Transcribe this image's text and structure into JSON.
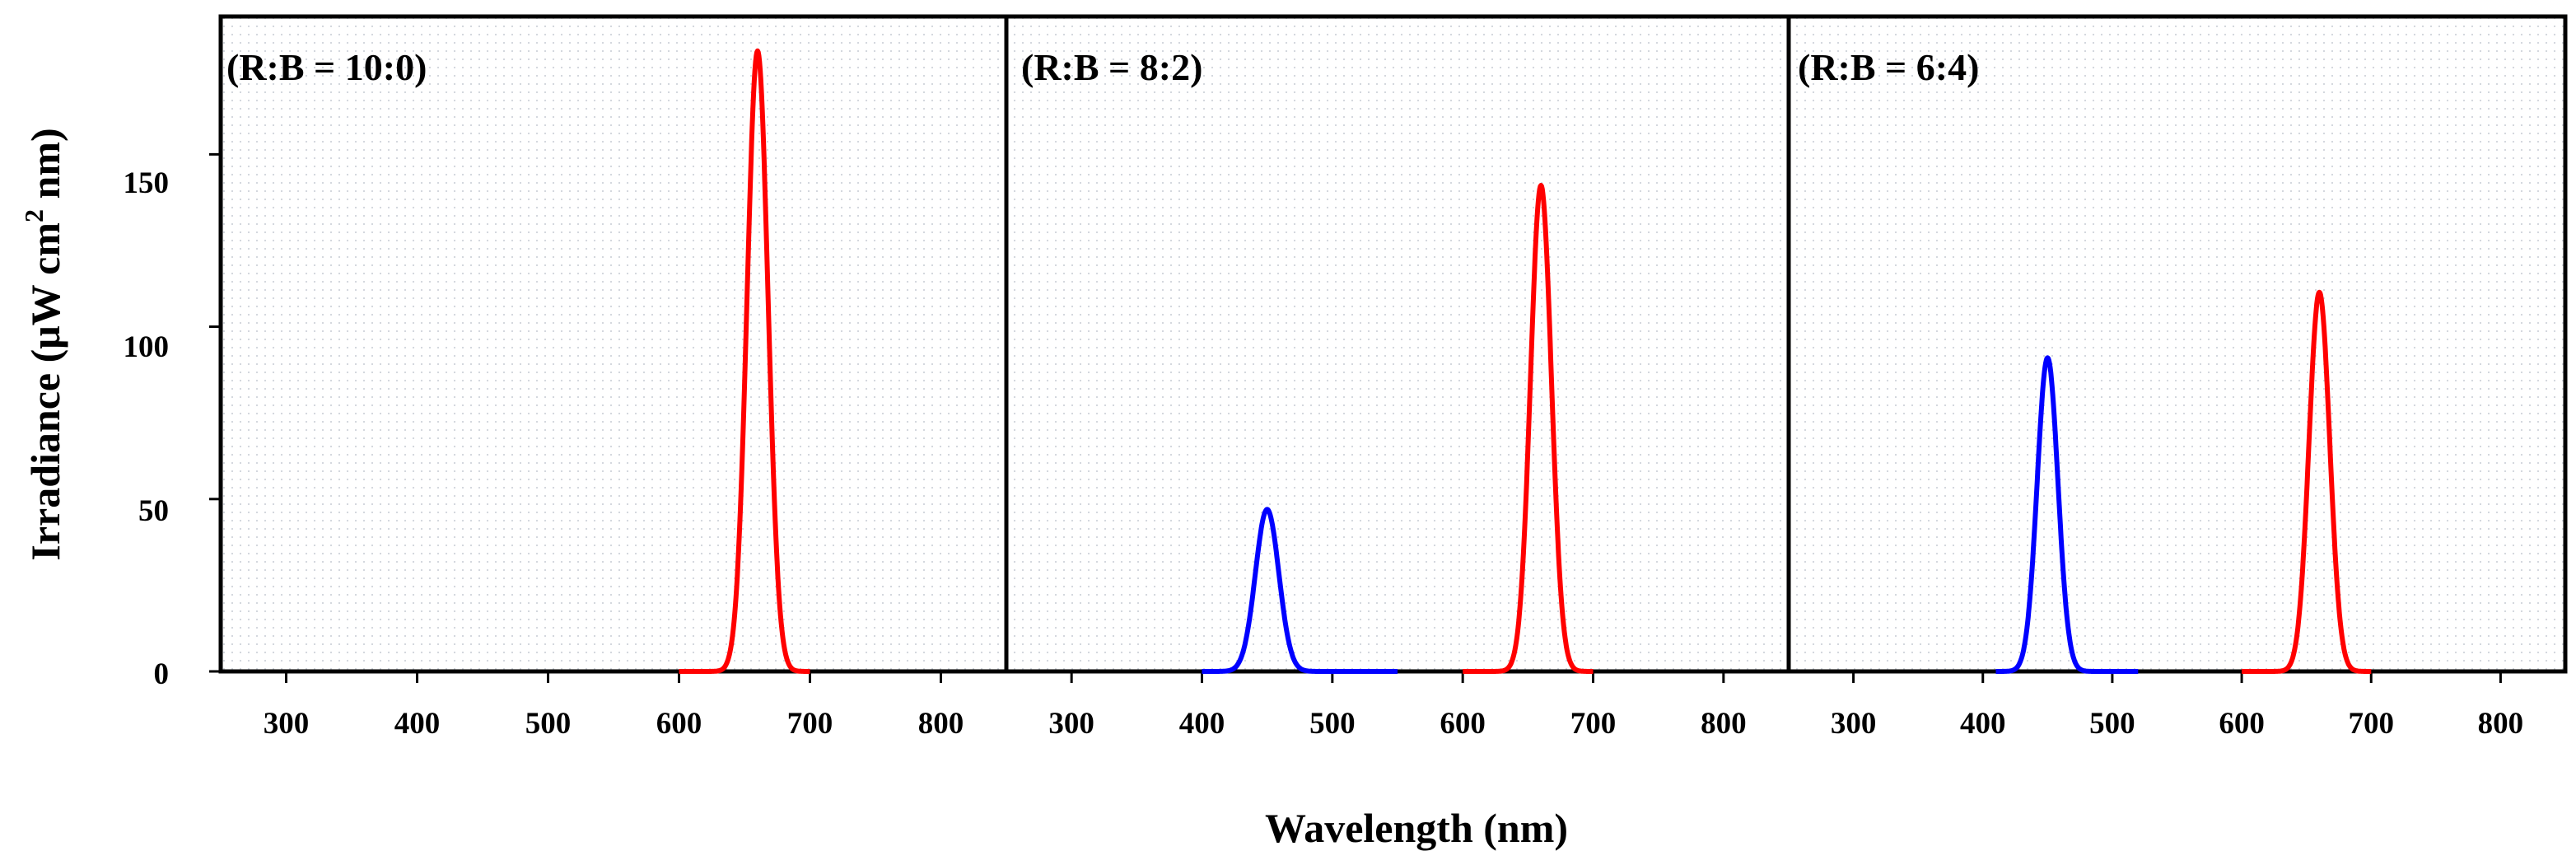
{
  "chart_data": {
    "type": "line",
    "ylabel": "Irradiance (μW cm",
    "ylabel_sup": "2",
    "ylabel_tail": " nm)",
    "xlabel": "Wavelength (nm)",
    "ylim": [
      0,
      190
    ],
    "yticks": [
      0,
      50,
      100,
      150
    ],
    "xlim": [
      250,
      850
    ],
    "xticks": [
      300,
      400,
      500,
      600,
      700,
      800
    ],
    "panels": [
      {
        "title": "(R:B = 10:0)",
        "series": [
          {
            "name": "red",
            "color": "#ff0000",
            "start": 600,
            "end": 700,
            "peak_x": 660,
            "peak_y": 180,
            "width": 8
          }
        ]
      },
      {
        "title": "(R:B = 8:2)",
        "series": [
          {
            "name": "blue",
            "color": "#0000ff",
            "start": 400,
            "end": 550,
            "peak_x": 450,
            "peak_y": 47,
            "width": 9
          },
          {
            "name": "red",
            "color": "#ff0000",
            "start": 600,
            "end": 700,
            "peak_x": 660,
            "peak_y": 141,
            "width": 8
          }
        ]
      },
      {
        "title": "(R:B = 6:4)",
        "series": [
          {
            "name": "blue",
            "color": "#0000ff",
            "start": 410,
            "end": 520,
            "peak_x": 450,
            "peak_y": 91,
            "width": 8
          },
          {
            "name": "red",
            "color": "#ff0000",
            "start": 600,
            "end": 700,
            "peak_x": 660,
            "peak_y": 110,
            "width": 8
          }
        ]
      }
    ]
  }
}
